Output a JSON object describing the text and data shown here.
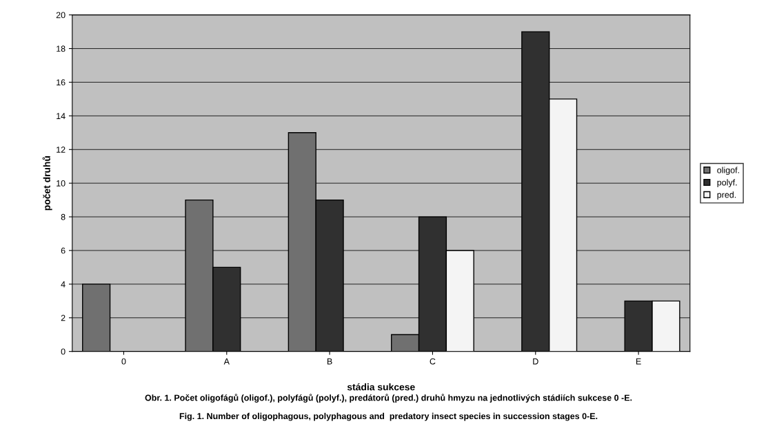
{
  "chart_data": {
    "type": "bar",
    "xlabel": "stádia sukcese",
    "ylabel": "počet druhů",
    "categories": [
      "0",
      "A",
      "B",
      "C",
      "D",
      "E"
    ],
    "series": [
      {
        "name": "oligof.",
        "color": "#707070",
        "values": [
          4,
          9,
          13,
          1,
          null,
          null
        ]
      },
      {
        "name": "polyf.",
        "color": "#303030",
        "values": [
          null,
          5,
          9,
          8,
          19,
          3
        ]
      },
      {
        "name": "pred.",
        "color": "#f4f4f4",
        "values": [
          null,
          null,
          null,
          6,
          15,
          3
        ]
      }
    ],
    "ylim": [
      0,
      20
    ],
    "yticks": [
      0,
      2,
      4,
      6,
      8,
      10,
      12,
      14,
      16,
      18,
      20
    ],
    "grid": "y",
    "legend": "right",
    "annotations": [
      "Obr. 1. Počet oligofágů (oligof.), polyfágů (polyf.), predátorů (pred.) druhů hmyzu na jednotlivých stádiích sukcese 0 -E.",
      "Fig. 1. Number of oligophagous, polyphagous and  predatory insect species in succession stages 0-E."
    ]
  }
}
